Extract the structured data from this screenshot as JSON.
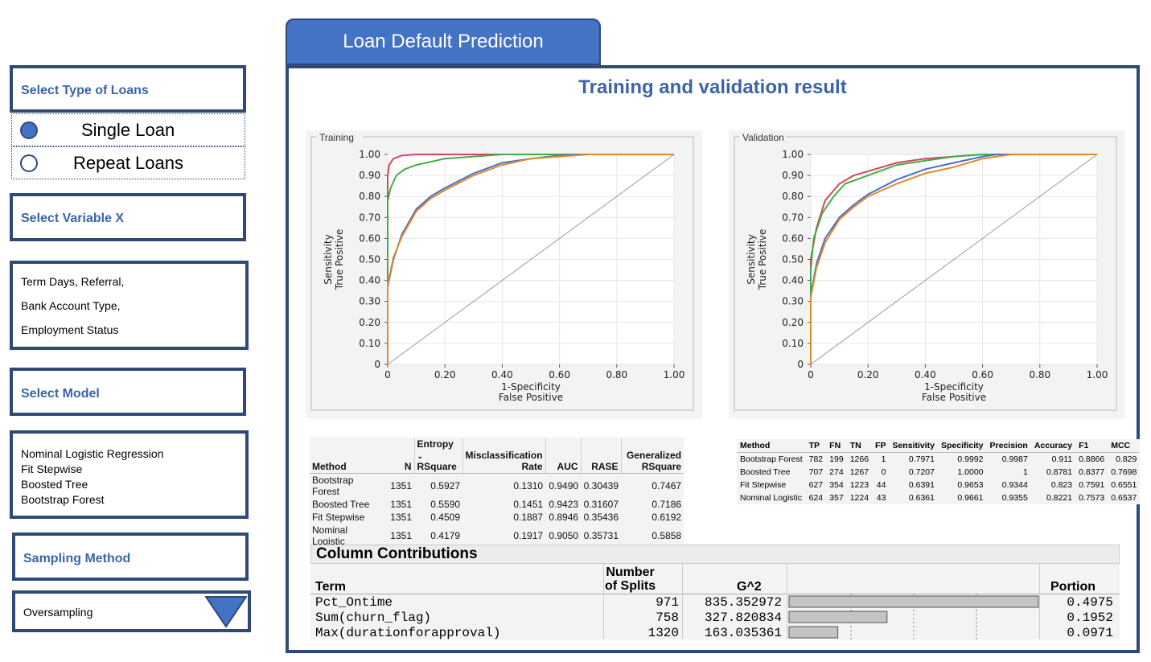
{
  "sidebar": {
    "loan_type": {
      "label": "Select Type of Loans",
      "options": [
        {
          "label": "Single Loan",
          "selected": true
        },
        {
          "label": "Repeat Loans",
          "selected": false
        }
      ]
    },
    "variable": {
      "label": "Select Variable X",
      "values": [
        "Term Days, Referral,",
        "Bank Account Type,",
        "Employment Status"
      ]
    },
    "model": {
      "label": "Select Model",
      "values": [
        "Nominal Logistic Regression",
        "Fit Stepwise",
        "Boosted Tree",
        "Bootstrap Forest"
      ]
    },
    "sampling": {
      "label": "Sampling Method",
      "selected": "Oversampling"
    }
  },
  "header": {
    "tab_title": "Loan Default Prediction",
    "main_title": "Training and validation result"
  },
  "chart_data": [
    {
      "type": "line",
      "title": "Training",
      "xlabel": "1-Specificity",
      "xlabel2": "False Positive",
      "ylabel": "Sensitivity",
      "ylabel2": "True Positive",
      "xlim": [
        0,
        1
      ],
      "ylim": [
        0,
        1
      ],
      "xticks": [
        "0",
        "0.20",
        "0.40",
        "0.60",
        "0.80",
        "1.00"
      ],
      "yticks": [
        "0",
        "0.10",
        "0.20",
        "0.30",
        "0.40",
        "0.50",
        "0.60",
        "0.70",
        "0.80",
        "0.90",
        "1.00"
      ],
      "series": [
        {
          "color": "#d9445a",
          "x": [
            0,
            0,
            0.005,
            0.02,
            0.05,
            0.1,
            0.2,
            1.0
          ],
          "y": [
            0,
            0.9,
            0.95,
            0.98,
            0.995,
            1.0,
            1.0,
            1.0
          ]
        },
        {
          "color": "#3fae49",
          "x": [
            0,
            0,
            0.01,
            0.03,
            0.06,
            0.1,
            0.2,
            0.3,
            0.4,
            0.5,
            1.0
          ],
          "y": [
            0,
            0.78,
            0.84,
            0.9,
            0.93,
            0.95,
            0.98,
            0.99,
            1.0,
            1.0,
            1.0
          ]
        },
        {
          "color": "#4a6fd0",
          "x": [
            0,
            0,
            0.02,
            0.05,
            0.1,
            0.15,
            0.2,
            0.3,
            0.4,
            0.5,
            0.6,
            0.7,
            1.0
          ],
          "y": [
            0,
            0.37,
            0.5,
            0.62,
            0.74,
            0.8,
            0.84,
            0.91,
            0.96,
            0.98,
            0.995,
            1.0,
            1.0
          ]
        },
        {
          "color": "#e08a2a",
          "x": [
            0,
            0,
            0.02,
            0.05,
            0.1,
            0.15,
            0.2,
            0.3,
            0.4,
            0.5,
            0.6,
            0.7,
            1.0
          ],
          "y": [
            0,
            0.38,
            0.51,
            0.61,
            0.73,
            0.79,
            0.83,
            0.9,
            0.95,
            0.98,
            0.99,
            1.0,
            1.0
          ]
        }
      ]
    },
    {
      "type": "line",
      "title": "Validation",
      "xlabel": "1-Specificity",
      "xlabel2": "False Positive",
      "ylabel": "Sensitivity",
      "ylabel2": "True Positive",
      "xlim": [
        0,
        1
      ],
      "ylim": [
        0,
        1
      ],
      "xticks": [
        "0",
        "0.20",
        "0.40",
        "0.60",
        "0.80",
        "1.00"
      ],
      "yticks": [
        "0",
        "0.10",
        "0.20",
        "0.30",
        "0.40",
        "0.50",
        "0.60",
        "0.70",
        "0.80",
        "0.90",
        "1.00"
      ],
      "series": [
        {
          "color": "#d9445a",
          "x": [
            0,
            0,
            0.02,
            0.05,
            0.1,
            0.15,
            0.2,
            0.3,
            0.4,
            0.5,
            0.6,
            1.0
          ],
          "y": [
            0,
            0.5,
            0.65,
            0.78,
            0.86,
            0.9,
            0.92,
            0.96,
            0.98,
            0.99,
            1.0,
            1.0
          ]
        },
        {
          "color": "#3fae49",
          "x": [
            0,
            0,
            0.01,
            0.04,
            0.08,
            0.12,
            0.2,
            0.3,
            0.4,
            0.5,
            0.6,
            1.0
          ],
          "y": [
            0,
            0.45,
            0.6,
            0.72,
            0.8,
            0.86,
            0.9,
            0.95,
            0.97,
            0.99,
            1.0,
            1.0
          ]
        },
        {
          "color": "#4a6fd0",
          "x": [
            0,
            0,
            0.02,
            0.05,
            0.1,
            0.15,
            0.2,
            0.3,
            0.4,
            0.5,
            0.6,
            0.65,
            1.0
          ],
          "y": [
            0,
            0.33,
            0.48,
            0.6,
            0.7,
            0.76,
            0.81,
            0.88,
            0.93,
            0.96,
            0.99,
            1.0,
            1.0
          ]
        },
        {
          "color": "#e08a2a",
          "x": [
            0,
            0,
            0.02,
            0.05,
            0.1,
            0.15,
            0.2,
            0.3,
            0.4,
            0.5,
            0.6,
            0.7,
            1.0
          ],
          "y": [
            0,
            0.32,
            0.46,
            0.58,
            0.69,
            0.75,
            0.8,
            0.86,
            0.91,
            0.94,
            0.98,
            1.0,
            1.0
          ]
        }
      ]
    }
  ],
  "fit_table": {
    "headers": {
      "method": "Method",
      "n": "N",
      "entropy_1": "Entropy",
      "entropy_2": "RSquare",
      "misclass_1": "Misclassification",
      "misclass_2": "Rate",
      "auc": "AUC",
      "rase": "RASE",
      "gen_1": "Generalized",
      "gen_2": "RSquare"
    },
    "rows": [
      {
        "method": "Bootstrap Forest",
        "n": "1351",
        "entropy": "0.5927",
        "misclass": "0.1310",
        "auc": "0.9490",
        "rase": "0.30439",
        "gen": "0.7467"
      },
      {
        "method": "Boosted Tree",
        "n": "1351",
        "entropy": "0.5590",
        "misclass": "0.1451",
        "auc": "0.9423",
        "rase": "0.31607",
        "gen": "0.7186"
      },
      {
        "method": "Fit Stepwise",
        "n": "1351",
        "entropy": "0.4509",
        "misclass": "0.1887",
        "auc": "0.8946",
        "rase": "0.35436",
        "gen": "0.6192"
      },
      {
        "method": "Nominal Logistic",
        "n": "1351",
        "entropy": "0.4179",
        "misclass": "0.1917",
        "auc": "0.9050",
        "rase": "0.35731",
        "gen": "0.5858"
      }
    ]
  },
  "confusion_table": {
    "headers": [
      "Method",
      "TP",
      "FN",
      "TN",
      "FP",
      "Sensitivity",
      "Specificity",
      "Precision",
      "Accuracy",
      "F1",
      "MCC"
    ],
    "rows": [
      [
        "Bootstrap Forest",
        "782",
        "199",
        "1266",
        "1",
        "0.7971",
        "0.9992",
        "0.9987",
        "0.911",
        "0.8866",
        "0.829"
      ],
      [
        "Boosted Tree",
        "707",
        "274",
        "1267",
        "0",
        "0.7207",
        "1.0000",
        "1",
        "0.8781",
        "0.8377",
        "0.7698"
      ],
      [
        "Fit Stepwise",
        "627",
        "354",
        "1223",
        "44",
        "0.6391",
        "0.9653",
        "0.9344",
        "0.823",
        "0.7591",
        "0.6551"
      ],
      [
        "Nominal Logistic",
        "624",
        "357",
        "1224",
        "43",
        "0.6361",
        "0.9661",
        "0.9355",
        "0.8221",
        "0.7573",
        "0.6537"
      ]
    ]
  },
  "column_contributions": {
    "title": "Column Contributions",
    "headers": {
      "term": "Term",
      "splits_1": "Number",
      "splits_2": "of Splits",
      "g2": "G^2",
      "portion": "Portion"
    },
    "rows": [
      {
        "term": "Pct_Ontime",
        "splits": "971",
        "g2": "835.352972",
        "portion": "0.4975",
        "fraction": 0.4975
      },
      {
        "term": "Sum(churn_flag)",
        "splits": "758",
        "g2": "327.820834",
        "portion": "0.1952",
        "fraction": 0.1952
      },
      {
        "term": "Max(durationforapproval)",
        "splits": "1320",
        "g2": "163.035361",
        "portion": "0.0971",
        "fraction": 0.0971
      }
    ]
  }
}
